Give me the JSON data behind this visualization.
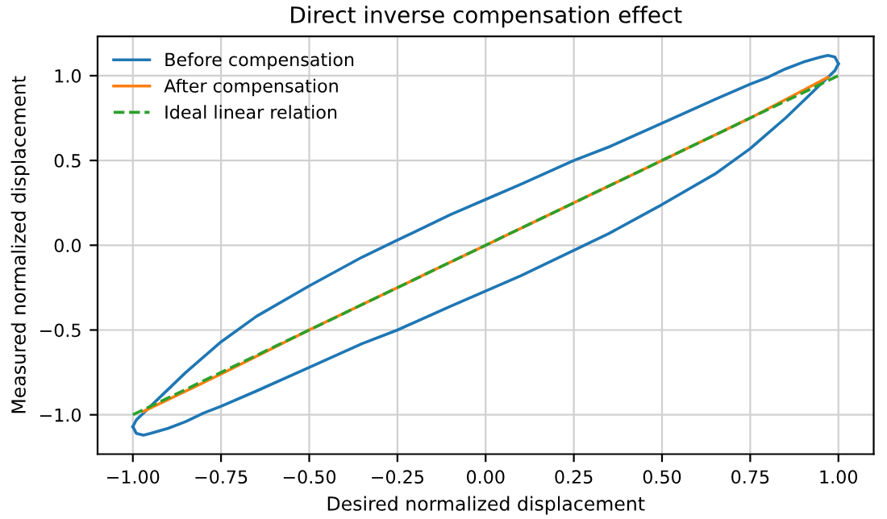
{
  "chart_data": {
    "type": "line",
    "title": "Direct inverse compensation effect",
    "xlabel": "Desired normalized displacement",
    "ylabel": "Measured normalized displacement",
    "series": [
      {
        "name": "Before compensation",
        "color": "#1f77b4",
        "line_style": "solid",
        "x": [
          -1.0,
          -0.99,
          -0.96,
          -0.9,
          -0.85,
          -0.8,
          -0.75,
          -0.65,
          -0.5,
          -0.35,
          -0.25,
          -0.1,
          0.0,
          0.1,
          0.25,
          0.35,
          0.5,
          0.65,
          0.75,
          0.8,
          0.85,
          0.9,
          0.95,
          0.97,
          0.99,
          1.0
        ],
        "values": [
          -1.07,
          -1.03,
          -0.97,
          -0.85,
          -0.75,
          -0.66,
          -0.57,
          -0.42,
          -0.24,
          -0.07,
          0.03,
          0.18,
          0.27,
          0.36,
          0.5,
          0.58,
          0.72,
          0.86,
          0.95,
          0.99,
          1.04,
          1.08,
          1.11,
          1.12,
          1.11,
          1.07
        ]
      },
      {
        "color": "#1f77b4",
        "line_style": "solid",
        "x": [
          -1.0,
          -0.99,
          -0.97,
          -0.95,
          -0.9,
          -0.85,
          -0.8,
          -0.75,
          -0.65,
          -0.5,
          -0.35,
          -0.25,
          -0.1,
          0.0,
          0.1,
          0.25,
          0.35,
          0.5,
          0.65,
          0.75,
          0.8,
          0.85,
          0.9,
          0.96,
          0.99,
          1.0
        ],
        "values": [
          -1.07,
          -1.11,
          -1.12,
          -1.11,
          -1.08,
          -1.04,
          -0.99,
          -0.95,
          -0.86,
          -0.72,
          -0.58,
          -0.5,
          -0.36,
          -0.27,
          -0.18,
          -0.03,
          0.07,
          0.24,
          0.42,
          0.57,
          0.66,
          0.75,
          0.85,
          0.97,
          1.03,
          1.07
        ]
      },
      {
        "name": "After compensation",
        "color": "#ff7f0e",
        "line_style": "solid",
        "x": [
          -0.97,
          -0.75,
          -0.5,
          -0.25,
          0.0,
          0.25,
          0.5,
          0.75,
          0.97
        ],
        "values": [
          -0.98,
          -0.76,
          -0.5,
          -0.25,
          0.0,
          0.25,
          0.5,
          0.75,
          0.99
        ]
      },
      {
        "name": "Ideal linear relation",
        "color": "#2ca02c",
        "line_style": "dashed",
        "x": [
          -1.0,
          1.0
        ],
        "values": [
          -1.0,
          1.0
        ]
      }
    ],
    "xlim": [
      -1.1,
      1.1
    ],
    "ylim": [
      -1.232,
      1.232
    ],
    "xticks": [
      {
        "value": -1.0,
        "label": "−1.00"
      },
      {
        "value": -0.75,
        "label": "−0.75"
      },
      {
        "value": -0.5,
        "label": "−0.50"
      },
      {
        "value": -0.25,
        "label": "−0.25"
      },
      {
        "value": 0.0,
        "label": "0.00"
      },
      {
        "value": 0.25,
        "label": "0.25"
      },
      {
        "value": 0.5,
        "label": "0.50"
      },
      {
        "value": 0.75,
        "label": "0.75"
      },
      {
        "value": 1.0,
        "label": "1.00"
      }
    ],
    "yticks": [
      {
        "value": -1.0,
        "label": "−1.0"
      },
      {
        "value": -0.5,
        "label": "−0.5"
      },
      {
        "value": 0.0,
        "label": "0.0"
      },
      {
        "value": 0.5,
        "label": "0.5"
      },
      {
        "value": 1.0,
        "label": "1.0"
      }
    ],
    "grid": true,
    "legend": "top left"
  }
}
